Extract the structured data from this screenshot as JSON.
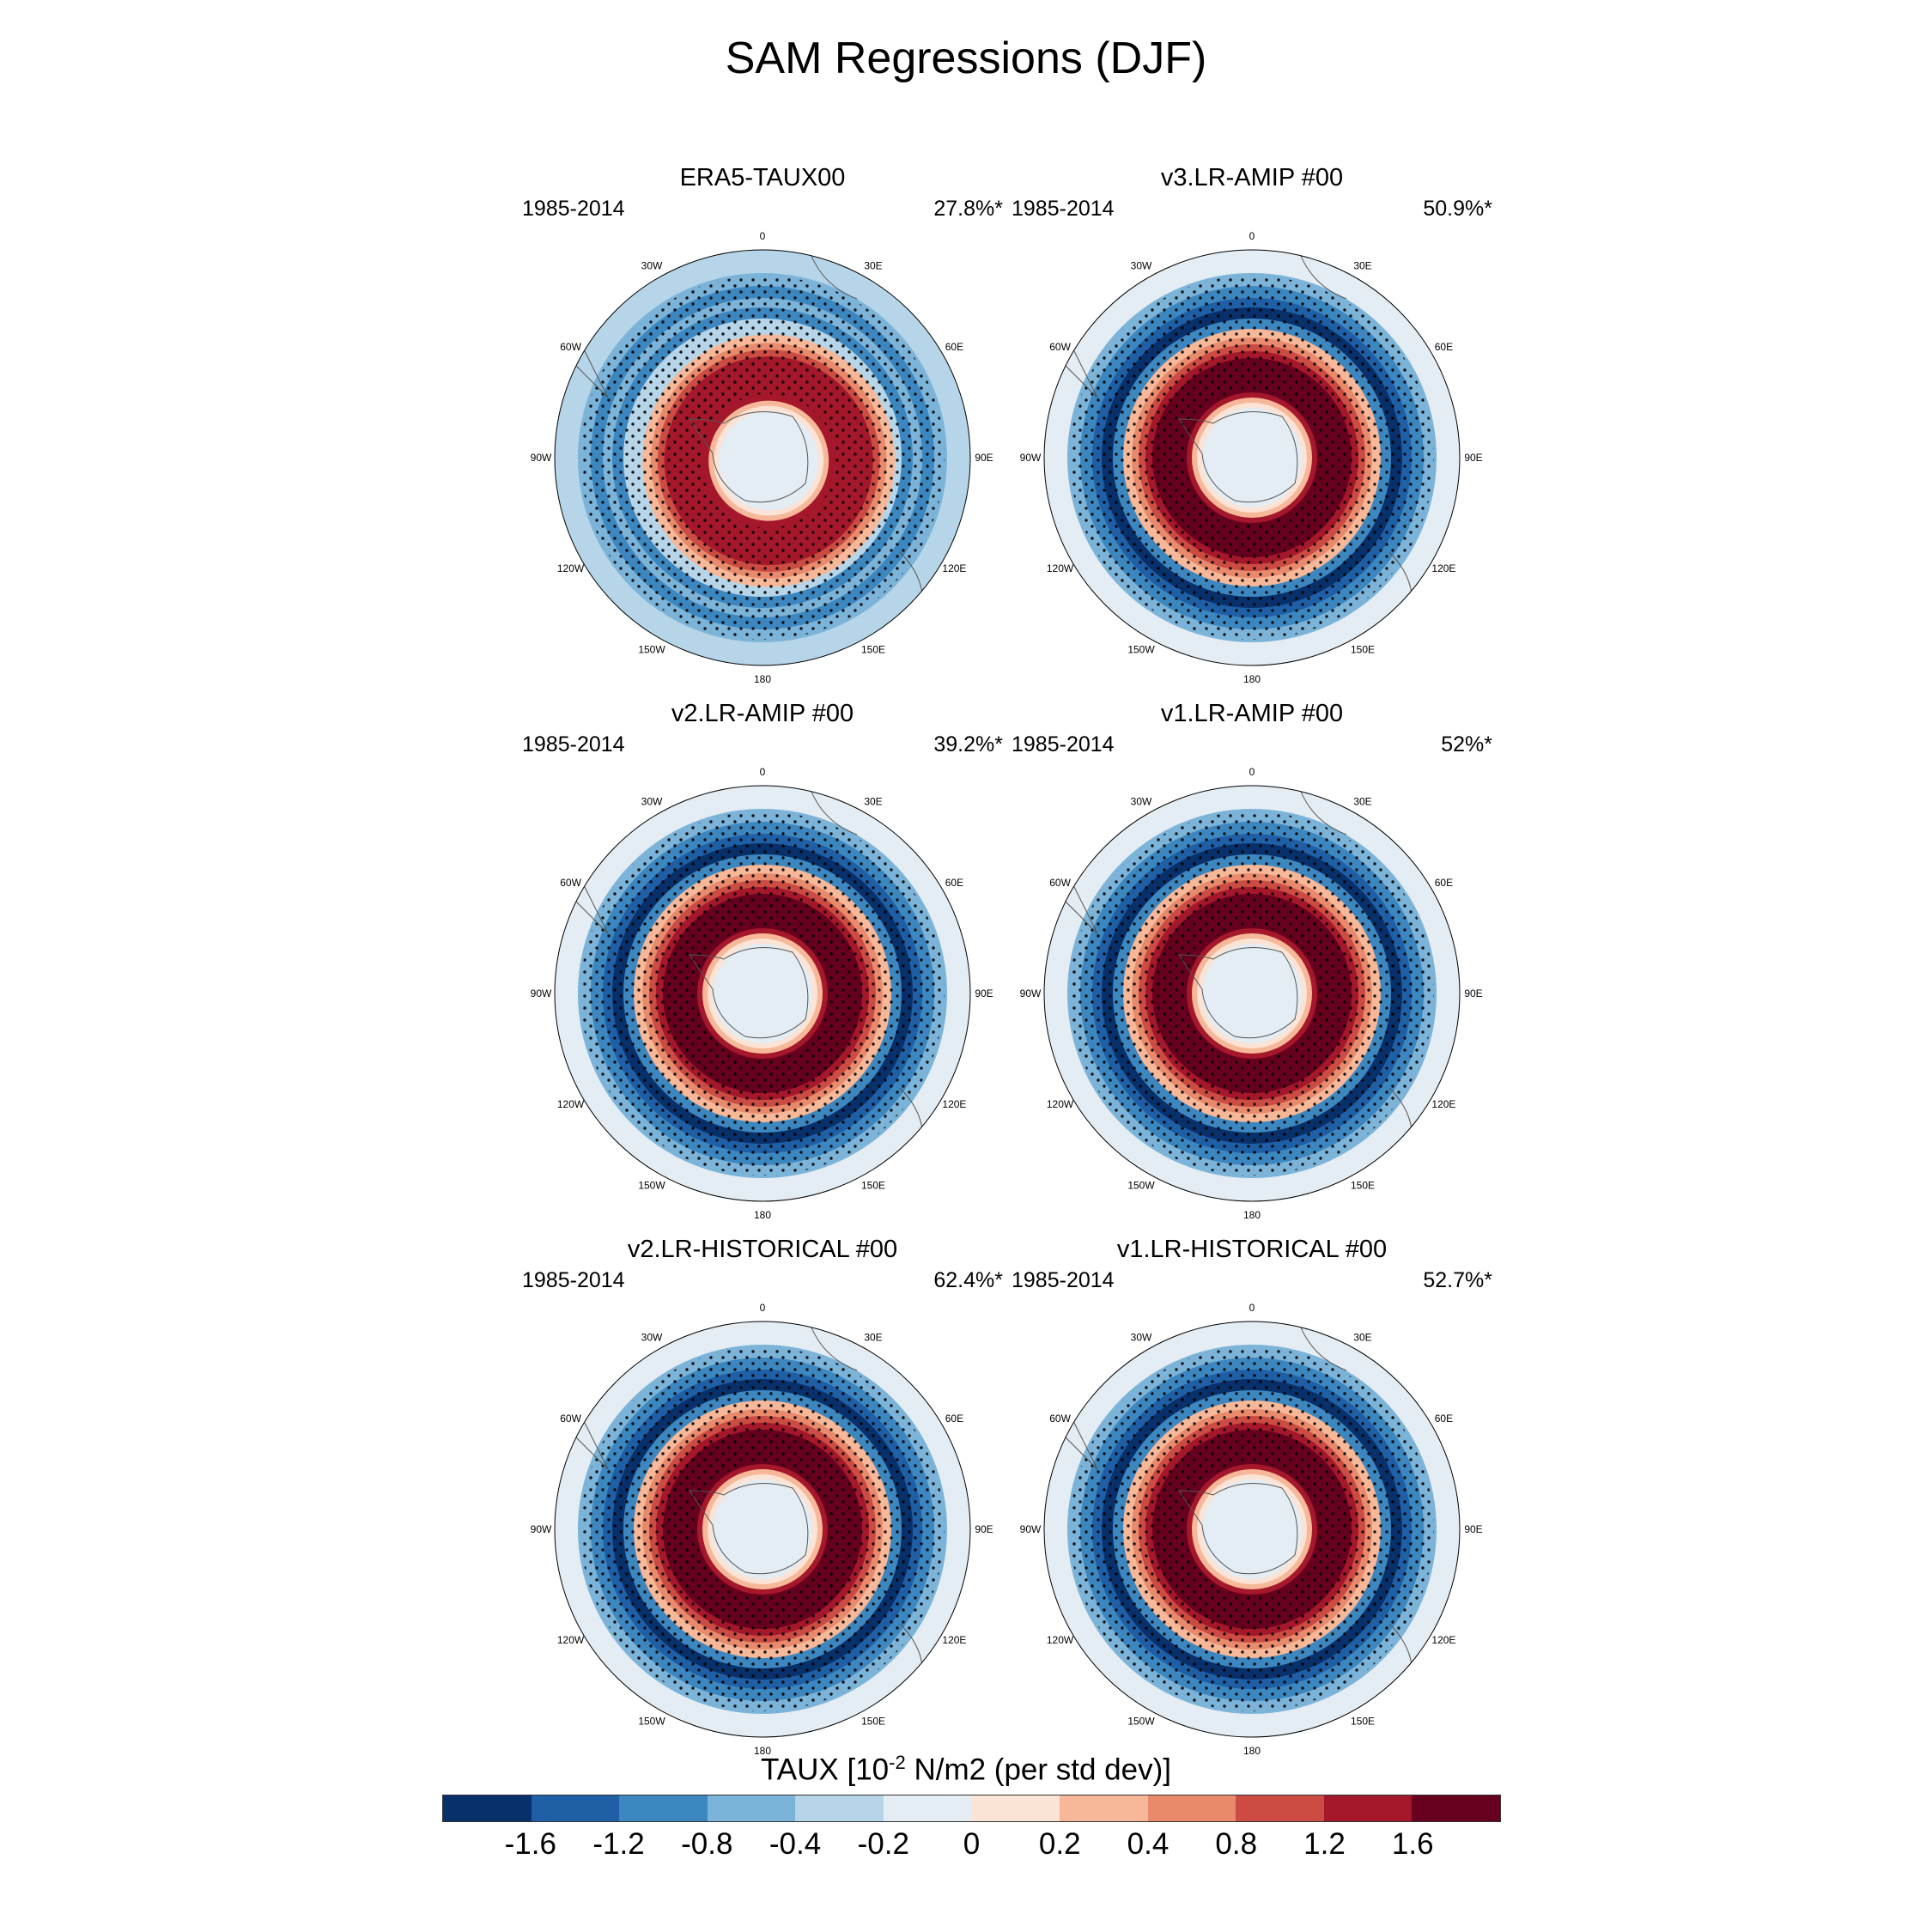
{
  "title": "SAM Regressions (DJF)",
  "lon_labels": [
    "0",
    "30E",
    "60E",
    "90E",
    "120E",
    "150E",
    "180",
    "150W",
    "120W",
    "90W",
    "60W",
    "30W"
  ],
  "panels": [
    {
      "title": "ERA5-TAUX00",
      "period": "1985-2014",
      "variance": "27.8%*",
      "ring_strength": 0.78,
      "ring_offset": 0.06
    },
    {
      "title": "v3.LR-AMIP  #00",
      "period": "1985-2014",
      "variance": "50.9%*",
      "ring_strength": 1.0,
      "ring_offset": 0.0
    },
    {
      "title": "v2.LR-AMIP  #00",
      "period": "1985-2014",
      "variance": "39.2%*",
      "ring_strength": 0.95,
      "ring_offset": 0.0
    },
    {
      "title": "v1.LR-AMIP  #00",
      "period": "1985-2014",
      "variance": "52%*",
      "ring_strength": 1.0,
      "ring_offset": 0.0
    },
    {
      "title": "v2.LR-HISTORICAL  #00",
      "period": "1985-2014",
      "variance": "62.4%*",
      "ring_strength": 1.0,
      "ring_offset": 0.0
    },
    {
      "title": "v1.LR-HISTORICAL  #00",
      "period": "1985-2014",
      "variance": "52.7%*",
      "ring_strength": 1.0,
      "ring_offset": 0.0
    }
  ],
  "colorbar": {
    "title_prefix": "TAUX [10",
    "title_exponent": "-2",
    "title_suffix": " N/m2 (per std dev)]",
    "colors": [
      "#08306b",
      "#1f5fa6",
      "#3d87c0",
      "#7cb3d8",
      "#b6d5e8",
      "#e3edf3",
      "#fbe3d6",
      "#f6b898",
      "#e98a6d",
      "#cc4c43",
      "#a5172b",
      "#67001f"
    ],
    "ticks": [
      "-1.6",
      "-1.2",
      "-0.8",
      "-0.4",
      "-0.2",
      "0",
      "0.2",
      "0.4",
      "0.8",
      "1.2",
      "1.6"
    ]
  }
}
